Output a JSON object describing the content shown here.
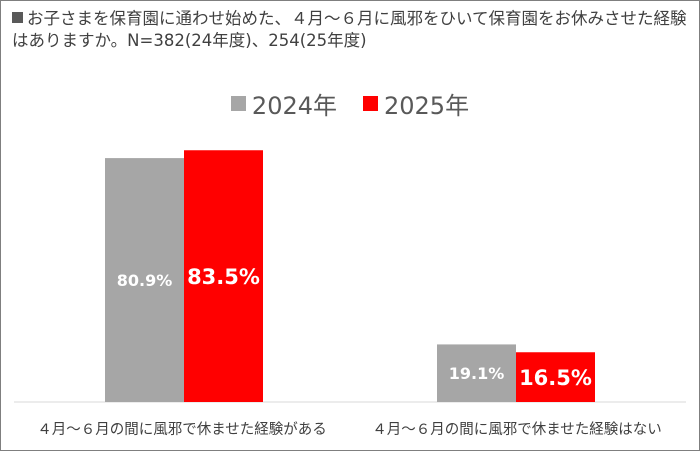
{
  "title": "お子さまを保育園に通わせ始めた、４月～６月に風邪をひいて保育園をお休みさせた経験はありますか。N=382(24年度)、254(25年度)",
  "chart_data": {
    "type": "bar",
    "title": "お子さまを保育園に通わせ始めた、４月～６月に風邪をひいて保育園をお休みさせた経験はありますか。N=382(24年度)、254(25年度)",
    "categories": [
      "４月～６月の間に風邪で休ませた経験がある",
      "４月～６月の間に風邪で休ませた経験はない"
    ],
    "series": [
      {
        "name": "2024年",
        "values": [
          80.9,
          19.1
        ],
        "labels": [
          "80.9%",
          "19.1%"
        ],
        "color": "#a6a6a6"
      },
      {
        "name": "2025年",
        "values": [
          83.5,
          16.5
        ],
        "labels": [
          "83.5%",
          "16.5%"
        ],
        "color": "#ff0000"
      }
    ],
    "ylim": [
      0,
      100
    ],
    "grid": false,
    "legend_position": "top-center"
  }
}
